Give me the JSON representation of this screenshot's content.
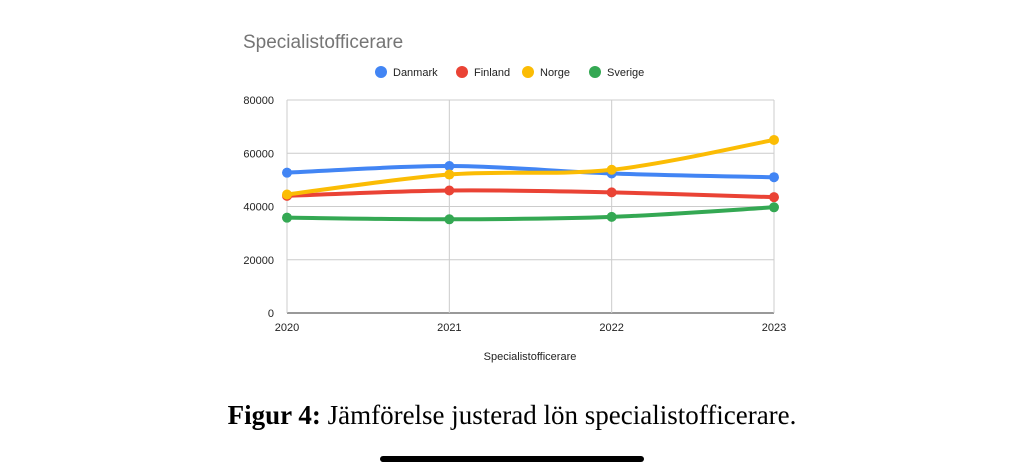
{
  "figure": {
    "caption_label": "Figur 4:",
    "caption_text": "Jämförelse justerad lön specialistofficerare."
  },
  "chart_data": {
    "type": "line",
    "title": "Specialistofficerare",
    "xlabel": "Specialistofficerare",
    "ylabel": "",
    "categories": [
      "2020",
      "2021",
      "2022",
      "2023"
    ],
    "ylim": [
      0,
      80000
    ],
    "yticks": [
      0,
      20000,
      40000,
      60000,
      80000
    ],
    "grid": true,
    "legend": "top",
    "series": [
      {
        "name": "Danmark",
        "color": "#4285F4",
        "values": [
          52700,
          55200,
          52400,
          51000
        ]
      },
      {
        "name": "Finland",
        "color": "#EA4335",
        "values": [
          44000,
          46000,
          45300,
          43500
        ]
      },
      {
        "name": "Norge",
        "color": "#FBBC04",
        "values": [
          44500,
          52000,
          53800,
          65000
        ]
      },
      {
        "name": "Sverige",
        "color": "#34A853",
        "values": [
          35800,
          35200,
          36100,
          39700
        ]
      }
    ]
  }
}
